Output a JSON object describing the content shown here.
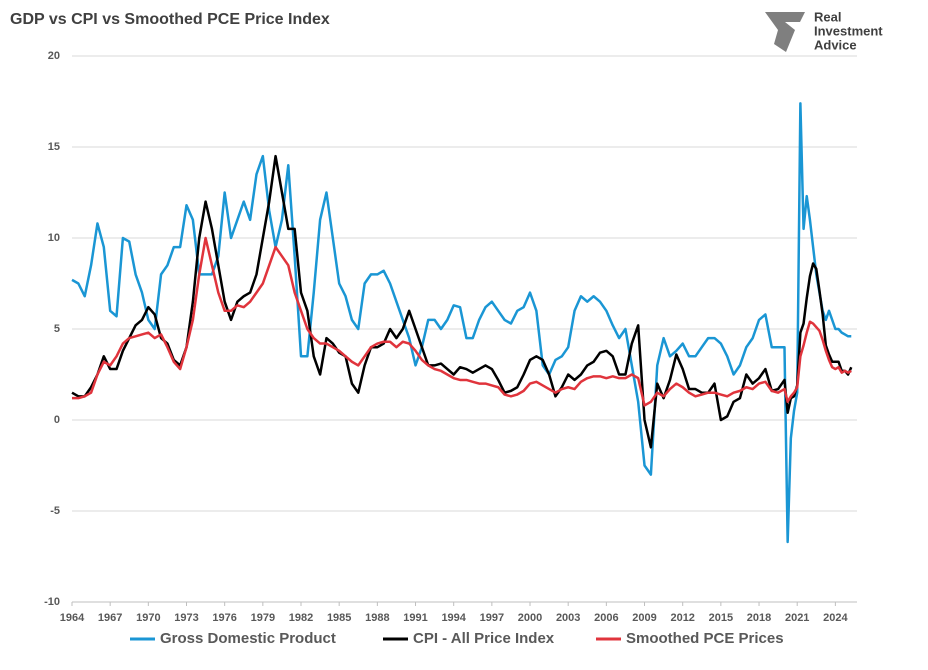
{
  "chart_data": {
    "type": "line",
    "title": "GDP vs CPI vs Smoothed PCE Price Index",
    "logo": [
      "Real",
      "Investment",
      "Advice"
    ],
    "x": [
      1964,
      1964.5,
      1965,
      1965.5,
      1966,
      1966.5,
      1967,
      1967.5,
      1968,
      1968.5,
      1969,
      1969.5,
      1970,
      1970.5,
      1971,
      1971.5,
      1972,
      1972.5,
      1973,
      1973.5,
      1974,
      1974.5,
      1975,
      1975.5,
      1976,
      1976.5,
      1977,
      1977.5,
      1978,
      1978.5,
      1979,
      1979.5,
      1980,
      1980.5,
      1981,
      1981.5,
      1982,
      1982.5,
      1983,
      1983.5,
      1984,
      1984.5,
      1985,
      1985.5,
      1986,
      1986.5,
      1987,
      1987.5,
      1988,
      1988.5,
      1989,
      1989.5,
      1990,
      1990.5,
      1991,
      1991.5,
      1992,
      1992.5,
      1993,
      1993.5,
      1994,
      1994.5,
      1995,
      1995.5,
      1996,
      1996.5,
      1997,
      1997.5,
      1998,
      1998.5,
      1999,
      1999.5,
      2000,
      2000.5,
      2001,
      2001.5,
      2002,
      2002.5,
      2003,
      2003.5,
      2004,
      2004.5,
      2005,
      2005.5,
      2006,
      2006.5,
      2007,
      2007.5,
      2008,
      2008.5,
      2009,
      2009.5,
      2010,
      2010.5,
      2011,
      2011.5,
      2012,
      2012.5,
      2013,
      2013.5,
      2014,
      2014.5,
      2015,
      2015.5,
      2016,
      2016.5,
      2017,
      2017.5,
      2018,
      2018.5,
      2019,
      2019.5,
      2020,
      2020.25,
      2020.5,
      2020.75,
      2021,
      2021.25,
      2021.5,
      2021.75,
      2022,
      2022.25,
      2022.5,
      2022.75,
      2023,
      2023.25,
      2023.5,
      2023.75,
      2024,
      2024.25,
      2024.5,
      2024.75,
      2025,
      2025.25
    ],
    "series": [
      {
        "name": "Gross Domestic Product",
        "color": "#1a96d4",
        "values": [
          7.7,
          7.5,
          6.8,
          8.5,
          10.8,
          9.5,
          6,
          5.7,
          10,
          9.8,
          8,
          7,
          5.5,
          5,
          8,
          8.5,
          9.5,
          9.5,
          11.8,
          11,
          8,
          8,
          8,
          9,
          12.5,
          10,
          11,
          12,
          11,
          13.5,
          14.5,
          11.5,
          9.5,
          11,
          14,
          9,
          3.5,
          3.5,
          7,
          11,
          12.5,
          10,
          7.5,
          6.8,
          5.5,
          5,
          7.5,
          8,
          8,
          8.2,
          7.5,
          6.5,
          5.5,
          4.5,
          3,
          4,
          5.5,
          5.5,
          5,
          5.5,
          6.3,
          6.2,
          4.5,
          4.5,
          5.5,
          6.2,
          6.5,
          6,
          5.5,
          5.3,
          6,
          6.2,
          7,
          6,
          3,
          2.5,
          3.3,
          3.5,
          4,
          6,
          6.8,
          6.5,
          6.8,
          6.5,
          6,
          5.2,
          4.5,
          5,
          3,
          1,
          -2.5,
          -3,
          3,
          4.5,
          3.5,
          3.8,
          4.2,
          3.5,
          3.5,
          4,
          4.5,
          4.5,
          4.2,
          3.5,
          2.5,
          3,
          4,
          4.5,
          5.5,
          5.8,
          4,
          4,
          4,
          -6.7,
          -1,
          0.5,
          1.5,
          17.4,
          10.5,
          12.3,
          11,
          9.5,
          8,
          7,
          6,
          5.5,
          6,
          5.5,
          5,
          5,
          4.8,
          4.7,
          4.6,
          4.6
        ]
      },
      {
        "name": "CPI - All Price Index",
        "color": "#000000",
        "values": [
          1.5,
          1.3,
          1.3,
          1.8,
          2.5,
          3.5,
          2.8,
          2.8,
          3.8,
          4.5,
          5.2,
          5.5,
          6.2,
          5.8,
          4.5,
          4.2,
          3.3,
          3,
          4,
          6.5,
          10,
          12,
          10.5,
          8.5,
          6.5,
          5.5,
          6.5,
          6.8,
          7,
          8,
          10,
          12,
          14.5,
          12.5,
          10.5,
          10.5,
          7,
          6,
          3.5,
          2.5,
          4.5,
          4.2,
          3.7,
          3.5,
          2,
          1.5,
          3,
          4,
          4,
          4.2,
          5,
          4.5,
          5,
          6,
          5,
          4,
          3,
          3,
          3.1,
          2.8,
          2.5,
          2.9,
          2.8,
          2.6,
          2.8,
          3,
          2.8,
          2.2,
          1.5,
          1.6,
          1.8,
          2.5,
          3.3,
          3.5,
          3.3,
          2.5,
          1.3,
          1.8,
          2.5,
          2.2,
          2.5,
          3,
          3.2,
          3.7,
          3.8,
          3.5,
          2.5,
          2.5,
          4.2,
          5.2,
          0,
          -1.5,
          2,
          1.2,
          2.2,
          3.6,
          2.8,
          1.7,
          1.7,
          1.5,
          1.5,
          2,
          0,
          0.2,
          1,
          1.2,
          2.5,
          2,
          2.3,
          2.8,
          1.6,
          1.7,
          2.2,
          0.4,
          1.2,
          1.3,
          1.9,
          4.8,
          5.3,
          6.7,
          7.9,
          8.6,
          8.3,
          7.1,
          5.8,
          4.1,
          3.6,
          3.2,
          3.2,
          3.2,
          2.7,
          2.7,
          2.5,
          2.9
        ]
      },
      {
        "name": "Smoothed PCE Prices",
        "color": "#e0343c",
        "values": [
          1.2,
          1.2,
          1.3,
          1.5,
          2.5,
          3.2,
          3,
          3.5,
          4.2,
          4.5,
          4.6,
          4.7,
          4.8,
          4.5,
          4.7,
          4,
          3.2,
          2.8,
          4,
          5.5,
          8,
          10,
          8.5,
          7,
          6,
          6,
          6.3,
          6.2,
          6.5,
          7,
          7.5,
          8.5,
          9.5,
          9,
          8.5,
          7,
          6,
          5,
          4.5,
          4.2,
          4.2,
          4,
          3.8,
          3.5,
          3.2,
          3,
          3.5,
          4,
          4.2,
          4.3,
          4.3,
          4,
          4.3,
          4.2,
          3.8,
          3.3,
          3,
          2.8,
          2.7,
          2.5,
          2.3,
          2.2,
          2.2,
          2.1,
          2,
          2,
          1.9,
          1.8,
          1.4,
          1.3,
          1.4,
          1.6,
          2,
          2.1,
          1.9,
          1.7,
          1.5,
          1.7,
          1.8,
          1.7,
          2.1,
          2.3,
          2.4,
          2.4,
          2.3,
          2.4,
          2.3,
          2.3,
          2.5,
          2.3,
          0.8,
          1,
          1.5,
          1.3,
          1.7,
          2,
          1.8,
          1.5,
          1.3,
          1.4,
          1.5,
          1.5,
          1.4,
          1.3,
          1.5,
          1.6,
          1.8,
          1.7,
          2,
          2.1,
          1.6,
          1.5,
          1.7,
          1,
          1.3,
          1.5,
          1.8,
          3.5,
          4.1,
          4.8,
          5.4,
          5.3,
          5.1,
          4.9,
          4.4,
          3.8,
          3.3,
          2.9,
          2.8,
          2.9,
          2.6,
          2.7,
          2.6,
          2.7
        ]
      }
    ],
    "xlim": [
      1964,
      2025.7
    ],
    "xticks": [
      1964,
      1967,
      1970,
      1973,
      1976,
      1979,
      1982,
      1985,
      1988,
      1991,
      1994,
      1997,
      2000,
      2003,
      2006,
      2009,
      2012,
      2015,
      2018,
      2021,
      2024
    ],
    "ylim": [
      -10,
      20
    ],
    "yticks": [
      -10,
      -5,
      0,
      5,
      10,
      15,
      20
    ],
    "grid": true,
    "legend": "bottom"
  }
}
